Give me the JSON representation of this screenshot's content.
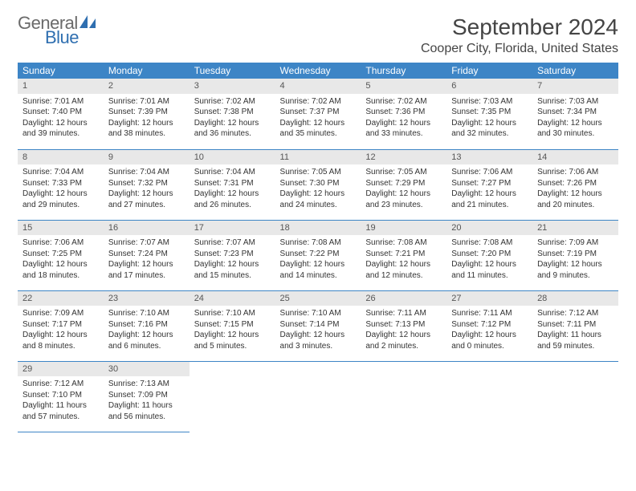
{
  "logo": {
    "word1": "General",
    "word2": "Blue",
    "icon_color": "#2f6fb0",
    "word1_color": "#6a6a6a",
    "word2_color": "#2f6fb0"
  },
  "title": "September 2024",
  "location": "Cooper City, Florida, United States",
  "header_bg": "#3d85c6",
  "header_fg": "#ffffff",
  "daynum_bg": "#e8e8e8",
  "row_border": "#3d85c6",
  "columns": [
    "Sunday",
    "Monday",
    "Tuesday",
    "Wednesday",
    "Thursday",
    "Friday",
    "Saturday"
  ],
  "weeks": [
    [
      {
        "n": "1",
        "sr": "7:01 AM",
        "ss": "7:40 PM",
        "dh": 12,
        "dm": 39
      },
      {
        "n": "2",
        "sr": "7:01 AM",
        "ss": "7:39 PM",
        "dh": 12,
        "dm": 38
      },
      {
        "n": "3",
        "sr": "7:02 AM",
        "ss": "7:38 PM",
        "dh": 12,
        "dm": 36
      },
      {
        "n": "4",
        "sr": "7:02 AM",
        "ss": "7:37 PM",
        "dh": 12,
        "dm": 35
      },
      {
        "n": "5",
        "sr": "7:02 AM",
        "ss": "7:36 PM",
        "dh": 12,
        "dm": 33
      },
      {
        "n": "6",
        "sr": "7:03 AM",
        "ss": "7:35 PM",
        "dh": 12,
        "dm": 32
      },
      {
        "n": "7",
        "sr": "7:03 AM",
        "ss": "7:34 PM",
        "dh": 12,
        "dm": 30
      }
    ],
    [
      {
        "n": "8",
        "sr": "7:04 AM",
        "ss": "7:33 PM",
        "dh": 12,
        "dm": 29
      },
      {
        "n": "9",
        "sr": "7:04 AM",
        "ss": "7:32 PM",
        "dh": 12,
        "dm": 27
      },
      {
        "n": "10",
        "sr": "7:04 AM",
        "ss": "7:31 PM",
        "dh": 12,
        "dm": 26
      },
      {
        "n": "11",
        "sr": "7:05 AM",
        "ss": "7:30 PM",
        "dh": 12,
        "dm": 24
      },
      {
        "n": "12",
        "sr": "7:05 AM",
        "ss": "7:29 PM",
        "dh": 12,
        "dm": 23
      },
      {
        "n": "13",
        "sr": "7:06 AM",
        "ss": "7:27 PM",
        "dh": 12,
        "dm": 21
      },
      {
        "n": "14",
        "sr": "7:06 AM",
        "ss": "7:26 PM",
        "dh": 12,
        "dm": 20
      }
    ],
    [
      {
        "n": "15",
        "sr": "7:06 AM",
        "ss": "7:25 PM",
        "dh": 12,
        "dm": 18
      },
      {
        "n": "16",
        "sr": "7:07 AM",
        "ss": "7:24 PM",
        "dh": 12,
        "dm": 17
      },
      {
        "n": "17",
        "sr": "7:07 AM",
        "ss": "7:23 PM",
        "dh": 12,
        "dm": 15
      },
      {
        "n": "18",
        "sr": "7:08 AM",
        "ss": "7:22 PM",
        "dh": 12,
        "dm": 14
      },
      {
        "n": "19",
        "sr": "7:08 AM",
        "ss": "7:21 PM",
        "dh": 12,
        "dm": 12
      },
      {
        "n": "20",
        "sr": "7:08 AM",
        "ss": "7:20 PM",
        "dh": 12,
        "dm": 11
      },
      {
        "n": "21",
        "sr": "7:09 AM",
        "ss": "7:19 PM",
        "dh": 12,
        "dm": 9
      }
    ],
    [
      {
        "n": "22",
        "sr": "7:09 AM",
        "ss": "7:17 PM",
        "dh": 12,
        "dm": 8
      },
      {
        "n": "23",
        "sr": "7:10 AM",
        "ss": "7:16 PM",
        "dh": 12,
        "dm": 6
      },
      {
        "n": "24",
        "sr": "7:10 AM",
        "ss": "7:15 PM",
        "dh": 12,
        "dm": 5
      },
      {
        "n": "25",
        "sr": "7:10 AM",
        "ss": "7:14 PM",
        "dh": 12,
        "dm": 3
      },
      {
        "n": "26",
        "sr": "7:11 AM",
        "ss": "7:13 PM",
        "dh": 12,
        "dm": 2
      },
      {
        "n": "27",
        "sr": "7:11 AM",
        "ss": "7:12 PM",
        "dh": 12,
        "dm": 0
      },
      {
        "n": "28",
        "sr": "7:12 AM",
        "ss": "7:11 PM",
        "dh": 11,
        "dm": 59
      }
    ],
    [
      {
        "n": "29",
        "sr": "7:12 AM",
        "ss": "7:10 PM",
        "dh": 11,
        "dm": 57
      },
      {
        "n": "30",
        "sr": "7:13 AM",
        "ss": "7:09 PM",
        "dh": 11,
        "dm": 56
      },
      null,
      null,
      null,
      null,
      null
    ]
  ],
  "labels": {
    "sunrise": "Sunrise:",
    "sunset": "Sunset:",
    "daylight": "Daylight:",
    "hours": "hours",
    "and": "and",
    "minutes": "minutes."
  }
}
